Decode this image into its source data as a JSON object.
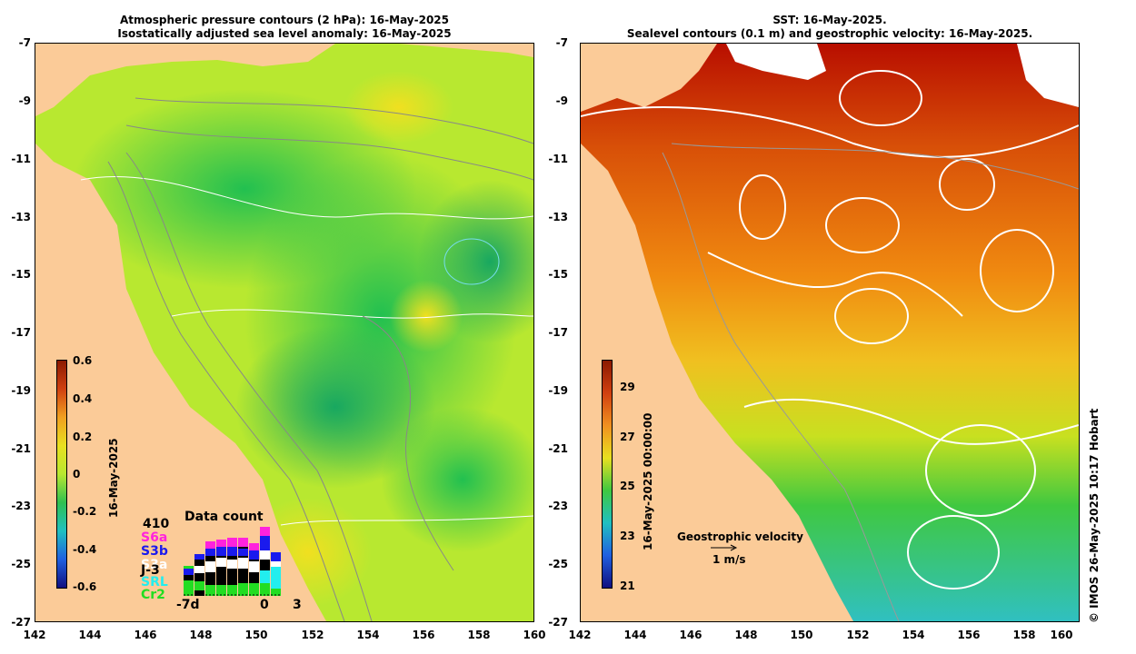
{
  "left_panel": {
    "title_line1": "Atmospheric pressure contours (2 hPa): 16-May-2025",
    "title_line2": "Isostatically adjusted sea level anomaly: 16-May-2025",
    "colorbar": {
      "ticks": [
        "0.6",
        "0.4",
        "0.2",
        "0",
        "-0.2",
        "-0.4",
        "-0.6"
      ],
      "label": "16-May-2025"
    },
    "data_count": {
      "title": "Data count",
      "max": "410",
      "satellites": [
        {
          "name": "S6a",
          "color": "#ff22dd"
        },
        {
          "name": "S3b",
          "color": "#1a1aee"
        },
        {
          "name": "S3a",
          "color": "#ffffff"
        },
        {
          "name": "J-3",
          "color": "#000000"
        },
        {
          "name": "SRL",
          "color": "#22eeee"
        },
        {
          "name": "Cr2",
          "color": "#22dd22"
        }
      ],
      "x_ticks": [
        "-7d",
        "0",
        "3"
      ]
    }
  },
  "right_panel": {
    "title_line1": "SST: 16-May-2025.",
    "title_line2": "Sealevel contours (0.1 m) and geostrophic velocity: 16-May-2025.",
    "colorbar": {
      "ticks": [
        "29",
        "27",
        "25",
        "23",
        "21"
      ],
      "label": "16-May-2025 00:00:00"
    },
    "legend_title": "Geostrophic velocity",
    "legend_scale": "1 m/s"
  },
  "axes": {
    "y_ticks": [
      "-7",
      "-9",
      "-11",
      "-13",
      "-15",
      "-17",
      "-19",
      "-21",
      "-23",
      "-25",
      "-27"
    ],
    "x_ticks": [
      "142",
      "144",
      "146",
      "148",
      "150",
      "152",
      "154",
      "156",
      "158",
      "160"
    ]
  },
  "credit": "© IMOS 26-May-2025 10:17 Hobart",
  "colors": {
    "land": "#fbcb98",
    "sla_ocean": "#b8e830",
    "sst_warm": "#b80e00"
  }
}
